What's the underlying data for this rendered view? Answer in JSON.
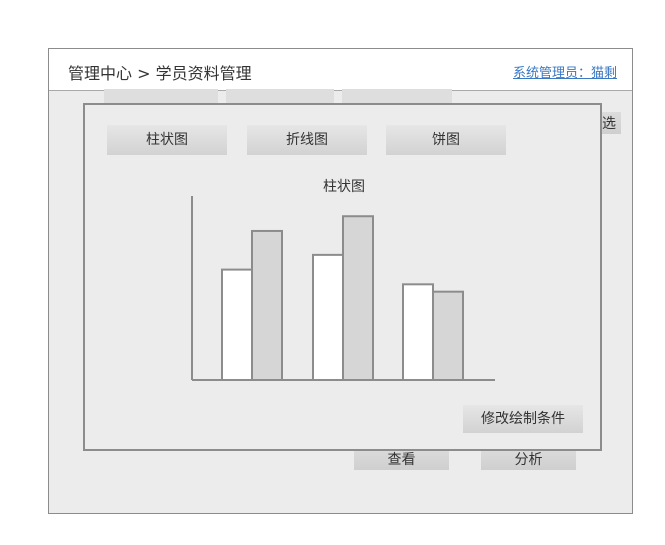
{
  "header": {
    "breadcrumb": "管理中心 > 学员资料管理",
    "admin_link": "系统管理员：猫剩"
  },
  "background": {
    "filter_label": "筛选",
    "view_label": "查看",
    "analyze_label": "分析"
  },
  "dialog": {
    "tabs": [
      {
        "label": "柱状图"
      },
      {
        "label": "折线图"
      },
      {
        "label": "饼图"
      }
    ],
    "modify_label": "修改绘制条件"
  },
  "chart_data": {
    "type": "bar",
    "title": "柱状图",
    "categories": [
      "",
      "",
      ""
    ],
    "series": [
      {
        "values": [
          6,
          6.8,
          5.2
        ],
        "color": "#ffffff"
      },
      {
        "values": [
          8.1,
          8.9,
          4.8
        ],
        "color": "#d6d6d6"
      }
    ],
    "ylim": [
      0,
      10
    ],
    "grid": false
  }
}
